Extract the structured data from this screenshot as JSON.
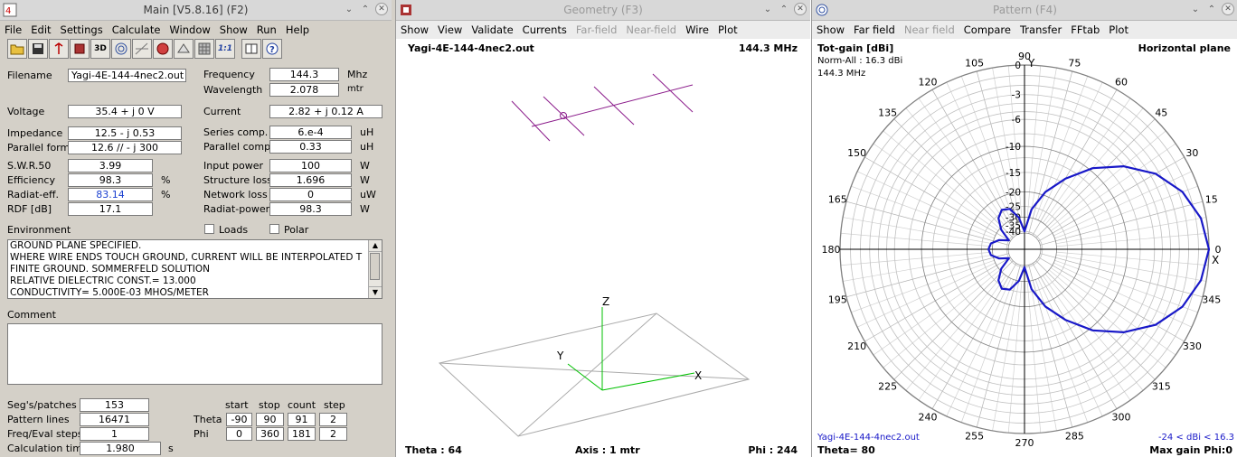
{
  "main": {
    "title": "Main [V5.8.16]  (F2)",
    "menu": [
      "File",
      "Edit",
      "Settings",
      "Calculate",
      "Window",
      "Show",
      "Run",
      "Help"
    ],
    "toolbar_icons": [
      "open-folder-icon",
      "save-icon",
      "antenna-icon",
      "geometry-icon",
      "3d-view-icon",
      "pattern-icon",
      "compare-icon",
      "window-icon",
      "settings-icon",
      "grid-icon",
      "scale-icon",
      "book-icon",
      "help-icon"
    ],
    "tool_text": {
      "three_d": "3D",
      "one_to_one": "1:1"
    },
    "filename_label": "Filename",
    "filename": "Yagi-4E-144-4nec2.out",
    "frequency_label": "Frequency",
    "frequency": "144.3",
    "frequency_unit": "Mhz",
    "wavelength_label": "Wavelength",
    "wavelength": "2.078",
    "wavelength_unit": "mtr",
    "voltage_label": "Voltage",
    "voltage": "35.4 + j 0 V",
    "current_label": "Current",
    "current": "2.82 + j 0.12 A",
    "impedance_label": "Impedance",
    "impedance": "12.5 - j 0.53",
    "series_comp_label": "Series comp.",
    "series_comp": "6.e-4",
    "series_comp_unit": "uH",
    "parallel_form_label": "Parallel form",
    "parallel_form": "12.6 // - j 300",
    "parallel_comp_label": "Parallel comp.",
    "parallel_comp": "0.33",
    "parallel_comp_unit": "uH",
    "swr_label": "S.W.R.50",
    "swr": "3.99",
    "input_power_label": "Input power",
    "input_power": "100",
    "input_power_unit": "W",
    "efficiency_label": "Efficiency",
    "efficiency": "98.3",
    "efficiency_unit": "%",
    "structure_loss_label": "Structure loss",
    "structure_loss": "1.696",
    "structure_loss_unit": "W",
    "radiat_eff_label": "Radiat-eff.",
    "radiat_eff": "83.14",
    "radiat_eff_unit": "%",
    "network_loss_label": "Network loss",
    "network_loss": "0",
    "network_loss_unit": "uW",
    "rdf_label": "RDF [dB]",
    "rdf": "17.1",
    "radiat_power_label": "Radiat-power",
    "radiat_power": "98.3",
    "radiat_power_unit": "W",
    "environment_label": "Environment",
    "loads_label": "Loads",
    "polar_label": "Polar",
    "environment_lines": [
      "GROUND PLANE SPECIFIED.",
      "WHERE WIRE ENDS TOUCH GROUND, CURRENT WILL BE INTERPOLATED T",
      "FINITE GROUND.  SOMMERFELD SOLUTION",
      "RELATIVE DIELECTRIC CONST.= 13.000",
      "CONDUCTIVITY= 5.000E-03 MHOS/METER"
    ],
    "comment_label": "Comment",
    "segs_label": "Seg's/patches",
    "segs": "153",
    "pattern_lines_label": "Pattern lines",
    "pattern_lines": "16471",
    "freq_eval_label": "Freq/Eval steps",
    "freq_eval": "1",
    "calc_time_label": "Calculation time",
    "calc_time": "1.980",
    "calc_time_unit": "s",
    "hdr_start": "start",
    "hdr_stop": "stop",
    "hdr_count": "count",
    "hdr_step": "step",
    "theta_label": "Theta",
    "theta_start": "-90",
    "theta_stop": "90",
    "theta_count": "91",
    "theta_step": "2",
    "phi_label": "Phi",
    "phi_start": "0",
    "phi_stop": "360",
    "phi_count": "181",
    "phi_step": "2"
  },
  "geometry": {
    "title": "Geometry    (F3)",
    "menu": [
      "Show",
      "View",
      "Validate",
      "Currents",
      "Far-field",
      "Near-field",
      "Wire",
      "Plot"
    ],
    "menu_disabled": [
      false,
      false,
      false,
      false,
      true,
      true,
      false,
      false
    ],
    "filename": "Yagi-4E-144-4nec2.out",
    "frequency": "144.3 MHz",
    "theta": "Theta : 64",
    "axis": "Axis : 1 mtr",
    "phi": "Phi : 244",
    "axis_x": "X",
    "axis_y": "Y",
    "axis_z": "Z"
  },
  "pattern": {
    "title": "Pattern    (F4)",
    "menu": [
      "Show",
      "Far field",
      "Near field",
      "Compare",
      "Transfer",
      "FFtab",
      "Plot"
    ],
    "menu_disabled": [
      false,
      false,
      true,
      false,
      false,
      false,
      false
    ],
    "tot_gain": "Tot-gain [dBi]",
    "norm_all": "Norm-All : 16.3 dBi",
    "frequency": "144.3 MHz",
    "plane": "Horizontal plane",
    "footer_file": "Yagi-4E-144-4nec2.out",
    "footer_range": "-24 < dBi < 16.3",
    "theta": "Theta= 80",
    "max_gain": "Max gain Phi:0",
    "axis_y": "Y",
    "axis_x": "X",
    "accent": "#1818c8"
  },
  "chart_data": {
    "type": "polar",
    "title": "Tot-gain [dBi]",
    "angle_labels": [
      "0",
      "15",
      "30",
      "45",
      "60",
      "75",
      "90",
      "105",
      "120",
      "135",
      "150",
      "165",
      "180",
      "195",
      "210",
      "225",
      "240",
      "255",
      "270",
      "285",
      "300",
      "315",
      "330",
      "345"
    ],
    "radial_ticks": [
      "0",
      "-3",
      "-6",
      "-10",
      "-15",
      "-20",
      "-25",
      "-30",
      "-35",
      "-40"
    ],
    "max_gain_dbi": 16.3,
    "min_gain_dbi": -24,
    "angles_deg": [
      0,
      10,
      20,
      30,
      40,
      50,
      60,
      70,
      80,
      90,
      100,
      110,
      120,
      130,
      140,
      150,
      160,
      170,
      180,
      190,
      200,
      210,
      220,
      230,
      240,
      250,
      260,
      270,
      280,
      290,
      300,
      310,
      320,
      330,
      340,
      350
    ],
    "gain_db_norm": [
      0,
      -0.5,
      -1.6,
      -3.4,
      -6.1,
      -9.5,
      -14,
      -19,
      -26,
      -40,
      -30,
      -25,
      -24,
      -26,
      -31,
      -40,
      -33,
      -29,
      -28,
      -29,
      -33,
      -40,
      -31,
      -26,
      -24,
      -25,
      -30,
      -40,
      -26,
      -19,
      -14,
      -9.5,
      -6.1,
      -3.4,
      -1.6,
      -0.5
    ]
  }
}
